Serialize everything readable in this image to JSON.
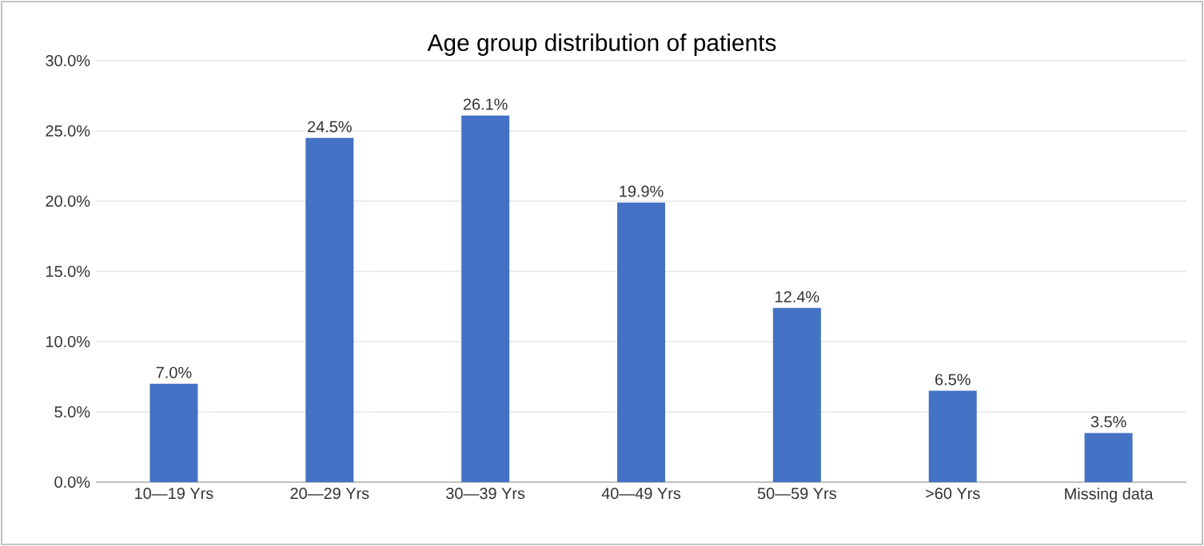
{
  "chart_data": {
    "type": "bar",
    "title": "Age group distribution of patients",
    "categories": [
      "10—19 Yrs",
      "20—29 Yrs",
      "30—39 Yrs",
      "40—49 Yrs",
      "50—59 Yrs",
      ">60 Yrs",
      "Missing data"
    ],
    "values": [
      7.0,
      24.5,
      26.1,
      19.9,
      12.4,
      6.5,
      3.5
    ],
    "value_labels": [
      "7.0%",
      "24.5%",
      "26.1%",
      "19.9%",
      "12.4%",
      "6.5%",
      "3.5%"
    ],
    "color": "#4472c4",
    "ylim": [
      0,
      30
    ],
    "yticks": [
      {
        "value": 0,
        "label": "0.0%"
      },
      {
        "value": 5,
        "label": "5.0%"
      },
      {
        "value": 10,
        "label": "10.0%"
      },
      {
        "value": 15,
        "label": "15.0%"
      },
      {
        "value": 20,
        "label": "20.0%"
      },
      {
        "value": 25,
        "label": "25.0%"
      },
      {
        "value": 30,
        "label": "30.0%"
      }
    ],
    "grid": "y"
  }
}
